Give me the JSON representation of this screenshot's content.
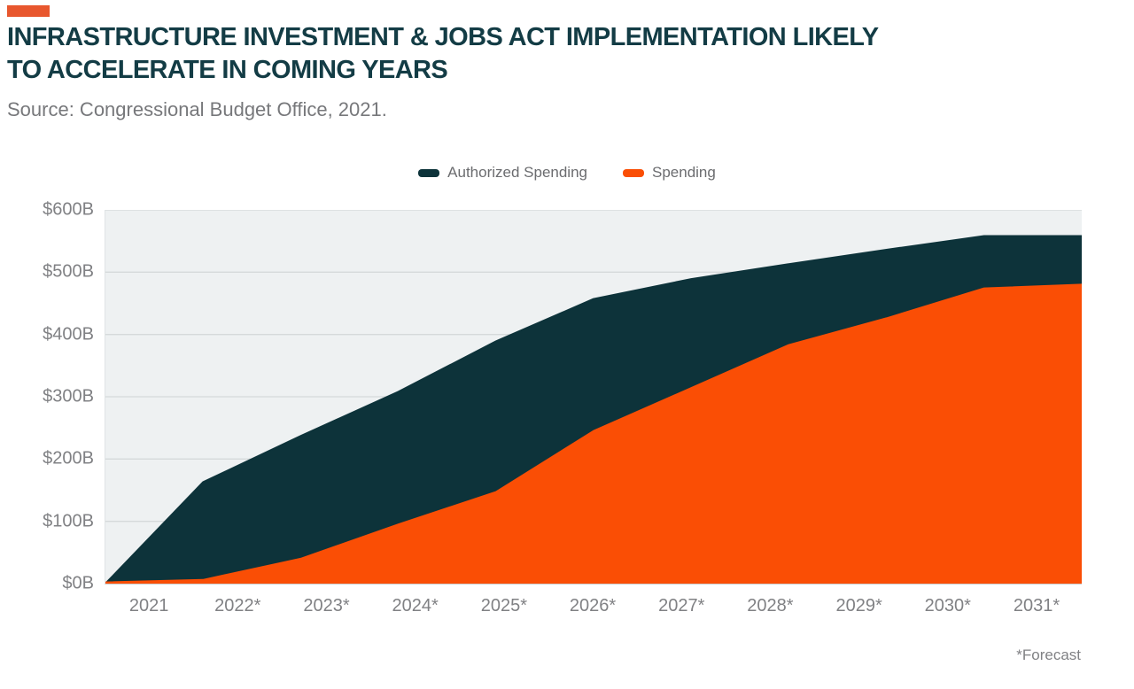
{
  "header": {
    "title_line1": "INFRASTRUCTURE INVESTMENT & JOBS ACT IMPLEMENTATION LIKELY",
    "title_line2": "TO ACCELERATE IN COMING YEARS",
    "source": "Source: Congressional Budget Office, 2021.",
    "accent_color": "#e8572e",
    "title_color": "#133c45"
  },
  "legend": {
    "items": [
      {
        "label": "Authorized Spending",
        "color": "#0d333a"
      },
      {
        "label": "Spending",
        "color": "#fa4e05"
      }
    ]
  },
  "chart_data": {
    "type": "area",
    "title": "Infrastructure Investment & Jobs Act Implementation Likely to Accelerate in Coming Years",
    "xlabel": "",
    "ylabel": "",
    "categories": [
      "2021",
      "2022*",
      "2023*",
      "2024*",
      "2025*",
      "2026*",
      "2027*",
      "2028*",
      "2029*",
      "2030*",
      "2031*"
    ],
    "series": [
      {
        "name": "Authorized Spending",
        "color": "#0d333a",
        "values": [
          0,
          163,
          237,
          308,
          389,
          457,
          489,
          513,
          536,
          558,
          558
        ]
      },
      {
        "name": "Spending",
        "color": "#fa4e05",
        "values": [
          2,
          6,
          40,
          95,
          147,
          245,
          314,
          383,
          426,
          474,
          480
        ]
      }
    ],
    "unit": "billions USD",
    "y_ticks": [
      "$600B",
      "$500B",
      "$400B",
      "$300B",
      "$200B",
      "$100B",
      "$0B"
    ],
    "ylim": [
      0,
      600
    ],
    "grid": true,
    "grid_color": "#d5d9da",
    "plot_bg": "#eef1f2",
    "legend_position": "top",
    "footnote": "*Forecast"
  }
}
